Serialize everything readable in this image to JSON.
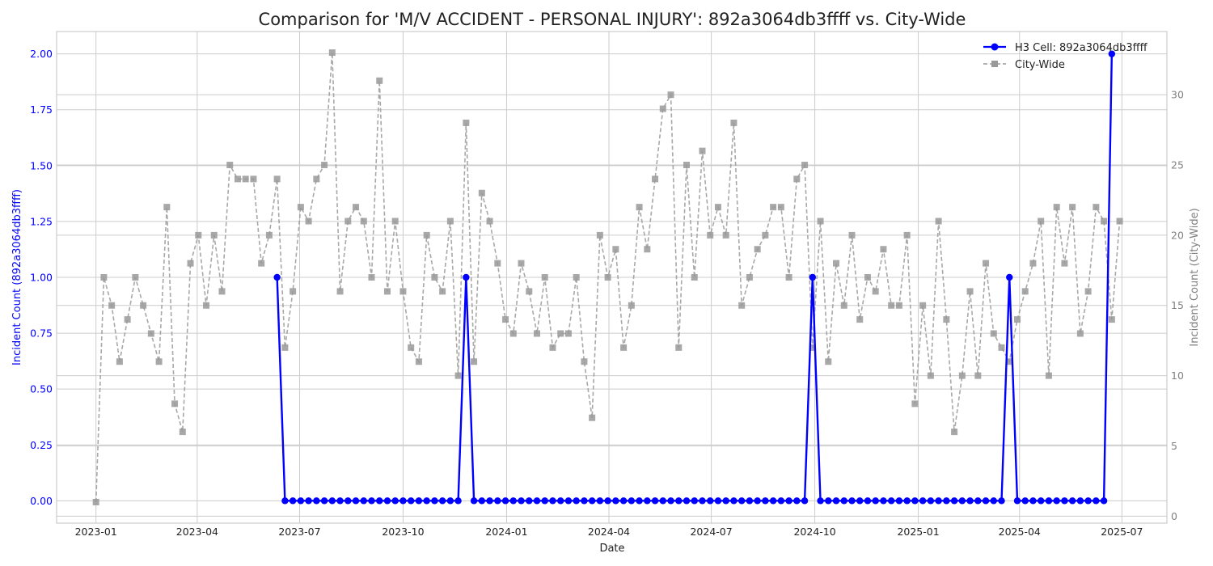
{
  "chart_data": {
    "type": "line",
    "title": "Comparison for 'M/V ACCIDENT - PERSONAL INJURY': 892a3064db3ffff vs. City-Wide",
    "xlabel": "Date",
    "ylabel_left": "Incident Count (892a3064db3ffff)",
    "ylabel_right": "Incident Count (City-Wide)",
    "x_ticks": [
      "2023-01",
      "2023-04",
      "2023-07",
      "2023-10",
      "2024-01",
      "2024-04",
      "2024-07",
      "2024-10",
      "2025-01",
      "2025-04",
      "2025-07"
    ],
    "y_left_ticks": [
      "0.00",
      "0.25",
      "0.50",
      "0.75",
      "1.00",
      "1.25",
      "1.50",
      "1.75",
      "2.00"
    ],
    "y_right_ticks": [
      "0",
      "5",
      "10",
      "15",
      "20",
      "25",
      "30"
    ],
    "ylim_left": [
      -0.1,
      2.1
    ],
    "ylim_right": [
      -0.5,
      34.5
    ],
    "xlim": [
      "2022-11-27",
      "2025-08-10"
    ],
    "grid": true,
    "legend_position": "top-right",
    "colors": {
      "cell": "#0000ff",
      "city": "#999999",
      "left_axis_text": "#0000ff",
      "right_axis_text": "#808080",
      "grid": "#cccccc"
    },
    "series": [
      {
        "name": "H3 Cell: 892a3064db3ffff",
        "axis": "left",
        "style": "solid-circle",
        "points": [
          [
            "2023-06-11",
            1
          ],
          [
            "2023-06-18",
            0
          ],
          [
            "2023-06-25",
            0
          ],
          [
            "2023-07-02",
            0
          ],
          [
            "2023-07-09",
            0
          ],
          [
            "2023-07-16",
            0
          ],
          [
            "2023-07-23",
            0
          ],
          [
            "2023-07-30",
            0
          ],
          [
            "2023-08-06",
            0
          ],
          [
            "2023-08-13",
            0
          ],
          [
            "2023-08-20",
            0
          ],
          [
            "2023-08-27",
            0
          ],
          [
            "2023-09-03",
            0
          ],
          [
            "2023-09-10",
            0
          ],
          [
            "2023-09-17",
            0
          ],
          [
            "2023-09-24",
            0
          ],
          [
            "2023-10-01",
            0
          ],
          [
            "2023-10-08",
            0
          ],
          [
            "2023-10-15",
            0
          ],
          [
            "2023-10-22",
            0
          ],
          [
            "2023-10-29",
            0
          ],
          [
            "2023-11-05",
            0
          ],
          [
            "2023-11-12",
            0
          ],
          [
            "2023-11-19",
            0
          ],
          [
            "2023-11-26",
            1
          ],
          [
            "2023-12-03",
            0
          ],
          [
            "2023-12-10",
            0
          ],
          [
            "2023-12-17",
            0
          ],
          [
            "2023-12-24",
            0
          ],
          [
            "2023-12-31",
            0
          ],
          [
            "2024-01-07",
            0
          ],
          [
            "2024-01-14",
            0
          ],
          [
            "2024-01-21",
            0
          ],
          [
            "2024-01-28",
            0
          ],
          [
            "2024-02-04",
            0
          ],
          [
            "2024-02-11",
            0
          ],
          [
            "2024-02-18",
            0
          ],
          [
            "2024-02-25",
            0
          ],
          [
            "2024-03-03",
            0
          ],
          [
            "2024-03-10",
            0
          ],
          [
            "2024-03-17",
            0
          ],
          [
            "2024-03-24",
            0
          ],
          [
            "2024-03-31",
            0
          ],
          [
            "2024-04-07",
            0
          ],
          [
            "2024-04-14",
            0
          ],
          [
            "2024-04-21",
            0
          ],
          [
            "2024-04-28",
            0
          ],
          [
            "2024-05-05",
            0
          ],
          [
            "2024-05-12",
            0
          ],
          [
            "2024-05-19",
            0
          ],
          [
            "2024-05-26",
            0
          ],
          [
            "2024-06-02",
            0
          ],
          [
            "2024-06-09",
            0
          ],
          [
            "2024-06-16",
            0
          ],
          [
            "2024-06-23",
            0
          ],
          [
            "2024-06-30",
            0
          ],
          [
            "2024-07-07",
            0
          ],
          [
            "2024-07-14",
            0
          ],
          [
            "2024-07-21",
            0
          ],
          [
            "2024-07-28",
            0
          ],
          [
            "2024-08-04",
            0
          ],
          [
            "2024-08-11",
            0
          ],
          [
            "2024-08-18",
            0
          ],
          [
            "2024-08-25",
            0
          ],
          [
            "2024-09-01",
            0
          ],
          [
            "2024-09-08",
            0
          ],
          [
            "2024-09-15",
            0
          ],
          [
            "2024-09-22",
            0
          ],
          [
            "2024-09-29",
            1
          ],
          [
            "2024-10-06",
            0
          ],
          [
            "2024-10-13",
            0
          ],
          [
            "2024-10-20",
            0
          ],
          [
            "2024-10-27",
            0
          ],
          [
            "2024-11-03",
            0
          ],
          [
            "2024-11-10",
            0
          ],
          [
            "2024-11-17",
            0
          ],
          [
            "2024-11-24",
            0
          ],
          [
            "2024-12-01",
            0
          ],
          [
            "2024-12-08",
            0
          ],
          [
            "2024-12-15",
            0
          ],
          [
            "2024-12-22",
            0
          ],
          [
            "2024-12-29",
            0
          ],
          [
            "2025-01-05",
            0
          ],
          [
            "2025-01-12",
            0
          ],
          [
            "2025-01-19",
            0
          ],
          [
            "2025-01-26",
            0
          ],
          [
            "2025-02-02",
            0
          ],
          [
            "2025-02-09",
            0
          ],
          [
            "2025-02-16",
            0
          ],
          [
            "2025-02-23",
            0
          ],
          [
            "2025-03-02",
            0
          ],
          [
            "2025-03-09",
            0
          ],
          [
            "2025-03-16",
            0
          ],
          [
            "2025-03-23",
            1
          ],
          [
            "2025-03-30",
            0
          ],
          [
            "2025-04-06",
            0
          ],
          [
            "2025-04-13",
            0
          ],
          [
            "2025-04-20",
            0
          ],
          [
            "2025-04-27",
            0
          ],
          [
            "2025-05-04",
            0
          ],
          [
            "2025-05-11",
            0
          ],
          [
            "2025-05-18",
            0
          ],
          [
            "2025-05-25",
            0
          ],
          [
            "2025-06-01",
            0
          ],
          [
            "2025-06-08",
            0
          ],
          [
            "2025-06-15",
            0
          ],
          [
            "2025-06-22",
            2
          ]
        ]
      },
      {
        "name": "City-Wide",
        "axis": "right",
        "style": "dashed-square",
        "points": [
          [
            "2023-01-01",
            1
          ],
          [
            "2023-01-08",
            17
          ],
          [
            "2023-01-15",
            15
          ],
          [
            "2023-01-22",
            11
          ],
          [
            "2023-01-29",
            14
          ],
          [
            "2023-02-05",
            17
          ],
          [
            "2023-02-12",
            15
          ],
          [
            "2023-02-19",
            13
          ],
          [
            "2023-02-26",
            11
          ],
          [
            "2023-03-05",
            22
          ],
          [
            "2023-03-12",
            8
          ],
          [
            "2023-03-19",
            6
          ],
          [
            "2023-03-26",
            18
          ],
          [
            "2023-04-02",
            20
          ],
          [
            "2023-04-09",
            15
          ],
          [
            "2023-04-16",
            20
          ],
          [
            "2023-04-23",
            16
          ],
          [
            "2023-04-30",
            25
          ],
          [
            "2023-05-07",
            24
          ],
          [
            "2023-05-14",
            24
          ],
          [
            "2023-05-21",
            24
          ],
          [
            "2023-05-28",
            18
          ],
          [
            "2023-06-04",
            20
          ],
          [
            "2023-06-11",
            24
          ],
          [
            "2023-06-18",
            12
          ],
          [
            "2023-06-25",
            16
          ],
          [
            "2023-07-02",
            22
          ],
          [
            "2023-07-09",
            21
          ],
          [
            "2023-07-16",
            24
          ],
          [
            "2023-07-23",
            25
          ],
          [
            "2023-07-30",
            33
          ],
          [
            "2023-08-06",
            16
          ],
          [
            "2023-08-13",
            21
          ],
          [
            "2023-08-20",
            22
          ],
          [
            "2023-08-27",
            21
          ],
          [
            "2023-09-03",
            17
          ],
          [
            "2023-09-10",
            31
          ],
          [
            "2023-09-17",
            16
          ],
          [
            "2023-09-24",
            21
          ],
          [
            "2023-10-01",
            16
          ],
          [
            "2023-10-08",
            12
          ],
          [
            "2023-10-15",
            11
          ],
          [
            "2023-10-22",
            20
          ],
          [
            "2023-10-29",
            17
          ],
          [
            "2023-11-05",
            16
          ],
          [
            "2023-11-12",
            21
          ],
          [
            "2023-11-19",
            10
          ],
          [
            "2023-11-26",
            28
          ],
          [
            "2023-12-03",
            11
          ],
          [
            "2023-12-10",
            23
          ],
          [
            "2023-12-17",
            21
          ],
          [
            "2023-12-24",
            18
          ],
          [
            "2023-12-31",
            14
          ],
          [
            "2024-01-07",
            13
          ],
          [
            "2024-01-14",
            18
          ],
          [
            "2024-01-21",
            16
          ],
          [
            "2024-01-28",
            13
          ],
          [
            "2024-02-04",
            17
          ],
          [
            "2024-02-11",
            12
          ],
          [
            "2024-02-18",
            13
          ],
          [
            "2024-02-25",
            13
          ],
          [
            "2024-03-03",
            17
          ],
          [
            "2024-03-10",
            11
          ],
          [
            "2024-03-17",
            7
          ],
          [
            "2024-03-24",
            20
          ],
          [
            "2024-03-31",
            17
          ],
          [
            "2024-04-07",
            19
          ],
          [
            "2024-04-14",
            12
          ],
          [
            "2024-04-21",
            15
          ],
          [
            "2024-04-28",
            22
          ],
          [
            "2024-05-05",
            19
          ],
          [
            "2024-05-12",
            24
          ],
          [
            "2024-05-19",
            29
          ],
          [
            "2024-05-26",
            30
          ],
          [
            "2024-06-02",
            12
          ],
          [
            "2024-06-09",
            25
          ],
          [
            "2024-06-16",
            17
          ],
          [
            "2024-06-23",
            26
          ],
          [
            "2024-06-30",
            20
          ],
          [
            "2024-07-07",
            22
          ],
          [
            "2024-07-14",
            20
          ],
          [
            "2024-07-21",
            28
          ],
          [
            "2024-07-28",
            15
          ],
          [
            "2024-08-04",
            17
          ],
          [
            "2024-08-11",
            19
          ],
          [
            "2024-08-18",
            20
          ],
          [
            "2024-08-25",
            22
          ],
          [
            "2024-09-01",
            22
          ],
          [
            "2024-09-08",
            17
          ],
          [
            "2024-09-15",
            24
          ],
          [
            "2024-09-22",
            25
          ],
          [
            "2024-09-29",
            12
          ],
          [
            "2024-10-06",
            21
          ],
          [
            "2024-10-13",
            11
          ],
          [
            "2024-10-20",
            18
          ],
          [
            "2024-10-27",
            15
          ],
          [
            "2024-11-03",
            20
          ],
          [
            "2024-11-10",
            14
          ],
          [
            "2024-11-17",
            17
          ],
          [
            "2024-11-24",
            16
          ],
          [
            "2024-12-01",
            19
          ],
          [
            "2024-12-08",
            15
          ],
          [
            "2024-12-15",
            15
          ],
          [
            "2024-12-22",
            20
          ],
          [
            "2024-12-29",
            8
          ],
          [
            "2025-01-05",
            15
          ],
          [
            "2025-01-12",
            10
          ],
          [
            "2025-01-19",
            21
          ],
          [
            "2025-01-26",
            14
          ],
          [
            "2025-02-02",
            6
          ],
          [
            "2025-02-09",
            10
          ],
          [
            "2025-02-16",
            16
          ],
          [
            "2025-02-23",
            10
          ],
          [
            "2025-03-02",
            18
          ],
          [
            "2025-03-09",
            13
          ],
          [
            "2025-03-16",
            12
          ],
          [
            "2025-03-23",
            11
          ],
          [
            "2025-03-30",
            14
          ],
          [
            "2025-04-06",
            16
          ],
          [
            "2025-04-13",
            18
          ],
          [
            "2025-04-20",
            21
          ],
          [
            "2025-04-27",
            10
          ],
          [
            "2025-05-04",
            22
          ],
          [
            "2025-05-11",
            18
          ],
          [
            "2025-05-18",
            22
          ],
          [
            "2025-05-25",
            13
          ],
          [
            "2025-06-01",
            16
          ],
          [
            "2025-06-08",
            22
          ],
          [
            "2025-06-15",
            21
          ],
          [
            "2025-06-22",
            14
          ],
          [
            "2025-06-29",
            21
          ]
        ]
      }
    ]
  }
}
